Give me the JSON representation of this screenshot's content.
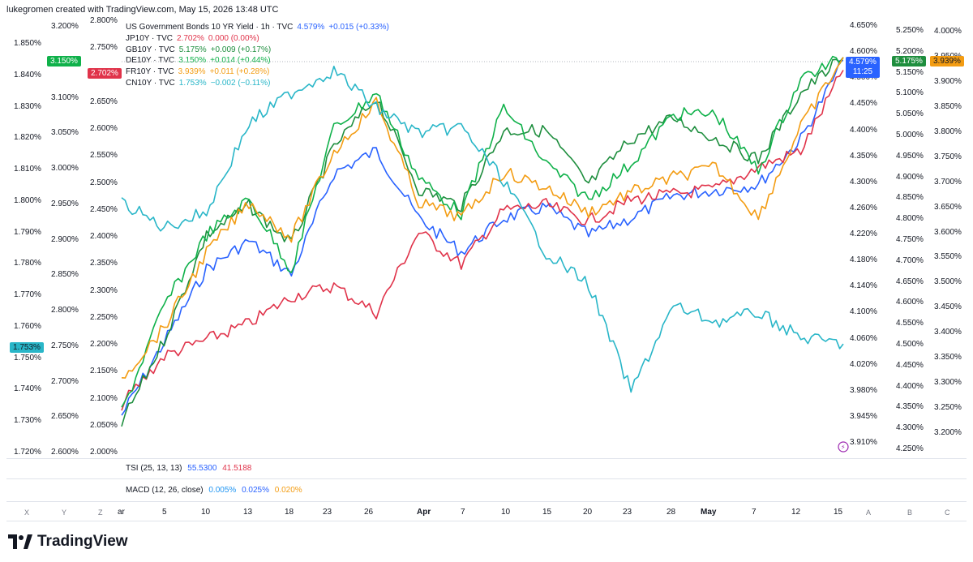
{
  "header": {
    "attribution": "lukegromen created with TradingView.com, May 15, 2026 13:48 UTC"
  },
  "legend": [
    {
      "name": "US Government Bonds 10 YR Yield · 1h · TVC",
      "value": "4.579%",
      "change": "+0.015 (+0.33%)",
      "color": "#2962ff"
    },
    {
      "name": "JP10Y · TVC",
      "value": "2.702%",
      "change": "0.000 (0.00%)",
      "color": "#e0334a"
    },
    {
      "name": "GB10Y · TVC",
      "value": "5.175%",
      "change": "+0.009 (+0.17%)",
      "color": "#1e8e3e"
    },
    {
      "name": "DE10Y · TVC",
      "value": "3.150%",
      "change": "+0.014 (+0.44%)",
      "color": "#0fb14a"
    },
    {
      "name": "FR10Y · TVC",
      "value": "3.939%",
      "change": "+0.011 (+0.28%)",
      "color": "#f39c12"
    },
    {
      "name": "CN10Y · TVC",
      "value": "1.753%",
      "change": "−0.002 (−0.11%)",
      "color": "#29b6c8"
    }
  ],
  "left_axes": {
    "cn": [
      "1.850%",
      "1.840%",
      "1.830%",
      "1.820%",
      "1.810%",
      "1.800%",
      "1.790%",
      "1.780%",
      "1.770%",
      "1.760%",
      "1.750%",
      "1.740%",
      "1.730%",
      "1.720%"
    ],
    "de": [
      "3.200%",
      "3.150%",
      "3.100%",
      "3.050%",
      "3.000%",
      "2.950%",
      "2.900%",
      "2.850%",
      "2.800%",
      "2.750%",
      "2.700%",
      "2.650%",
      "2.600%"
    ],
    "jp": [
      "2.800%",
      "2.750%",
      "2.700%",
      "2.650%",
      "2.600%",
      "2.550%",
      "2.500%",
      "2.450%",
      "2.400%",
      "2.350%",
      "2.300%",
      "2.250%",
      "2.200%",
      "2.150%",
      "2.100%",
      "2.050%",
      "2.000%"
    ]
  },
  "right_axes": {
    "us": [
      "4.650%",
      "4.600%",
      "4.500%",
      "4.450%",
      "4.400%",
      "4.350%",
      "4.300%",
      "4.260%",
      "4.220%",
      "4.180%",
      "4.140%",
      "4.100%",
      "4.060%",
      "4.020%",
      "3.980%",
      "3.945%",
      "3.910%"
    ],
    "gb": [
      "5.250%",
      "5.200%",
      "5.150%",
      "5.100%",
      "5.050%",
      "5.000%",
      "4.950%",
      "4.900%",
      "4.850%",
      "4.800%",
      "4.750%",
      "4.700%",
      "4.650%",
      "4.600%",
      "4.550%",
      "4.500%",
      "4.450%",
      "4.400%",
      "4.350%",
      "4.300%",
      "4.250%"
    ],
    "fr": [
      "4.000%",
      "3.950%",
      "3.900%",
      "3.850%",
      "3.800%",
      "3.750%",
      "3.700%",
      "3.650%",
      "3.600%",
      "3.550%",
      "3.500%",
      "3.450%",
      "3.400%",
      "3.350%",
      "3.300%",
      "3.250%",
      "3.200%"
    ]
  },
  "badges": {
    "de": "3.150%",
    "jp": "2.702%",
    "cn": "1.753%",
    "us": "4.579%",
    "us_time": "11:25",
    "gb": "5.175%",
    "fr": "3.939%"
  },
  "indicators": {
    "tsi": {
      "label": "TSI (25, 13, 13)",
      "v1": "55.5300",
      "v2": "41.5188"
    },
    "macd": {
      "label": "MACD (12, 26, close)",
      "v1": "0.005%",
      "v2": "0.025%",
      "v3": "0.020%"
    }
  },
  "time_axis": [
    "ar",
    "5",
    "10",
    "13",
    "18",
    "23",
    "26",
    "Apr",
    "7",
    "10",
    "15",
    "20",
    "23",
    "28",
    "May",
    "7",
    "12",
    "15"
  ],
  "corners": {
    "left": [
      "X",
      "Y",
      "Z"
    ],
    "right": [
      "A",
      "B",
      "C"
    ]
  },
  "brand": "TradingView",
  "chart_data": {
    "type": "line",
    "x": [
      "Mar 2",
      "Mar 5",
      "Mar 10",
      "Mar 13",
      "Mar 18",
      "Mar 23",
      "Mar 26",
      "Apr 1",
      "Apr 7",
      "Apr 10",
      "Apr 15",
      "Apr 20",
      "Apr 23",
      "Apr 28",
      "May 1",
      "May 7",
      "May 12",
      "May 15"
    ],
    "series": [
      {
        "name": "US10Y",
        "color": "#2962ff",
        "values": [
          3.95,
          4.08,
          4.21,
          4.26,
          4.2,
          4.38,
          4.42,
          4.3,
          4.24,
          4.3,
          4.32,
          4.27,
          4.3,
          4.34,
          4.35,
          4.36,
          4.44,
          4.58
        ]
      },
      {
        "name": "JP10Y",
        "color": "#e0334a",
        "values": [
          2.08,
          2.17,
          2.2,
          2.23,
          2.28,
          2.3,
          2.25,
          2.4,
          2.34,
          2.44,
          2.45,
          2.42,
          2.46,
          2.47,
          2.48,
          2.52,
          2.55,
          2.7
        ]
      },
      {
        "name": "GB10Y",
        "color": "#1e8e3e",
        "values": [
          4.3,
          4.5,
          4.75,
          4.82,
          4.73,
          4.96,
          5.08,
          4.86,
          4.82,
          5.0,
          5.0,
          4.87,
          4.98,
          5.03,
          4.98,
          4.93,
          5.09,
          5.175
        ]
      },
      {
        "name": "DE10Y",
        "color": "#0fb14a",
        "values": [
          2.65,
          2.8,
          2.9,
          2.95,
          2.85,
          3.05,
          3.1,
          2.98,
          2.93,
          3.08,
          3.0,
          2.95,
          3.0,
          3.07,
          3.07,
          2.99,
          3.12,
          3.15
        ]
      },
      {
        "name": "FR10Y",
        "color": "#f39c12",
        "values": [
          3.3,
          3.4,
          3.55,
          3.65,
          3.58,
          3.75,
          3.85,
          3.65,
          3.62,
          3.71,
          3.68,
          3.63,
          3.67,
          3.7,
          3.72,
          3.62,
          3.8,
          3.939
        ]
      },
      {
        "name": "CN10Y",
        "color": "#29b6c8",
        "values": [
          1.798,
          1.79,
          1.795,
          1.823,
          1.833,
          1.84,
          1.828,
          1.82,
          1.822,
          1.805,
          1.782,
          1.772,
          1.738,
          1.765,
          1.76,
          1.763,
          1.755,
          1.753
        ]
      }
    ]
  }
}
